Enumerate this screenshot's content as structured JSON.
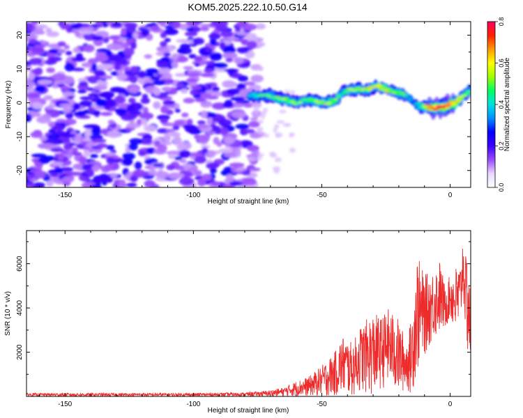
{
  "title": "KOM5.2025.222.10.50.G14",
  "chart_data": [
    {
      "type": "heatmap",
      "xlabel": "Height of straight line (km)",
      "ylabel": "Frequency (Hz)",
      "xlim": [
        -165,
        8
      ],
      "ylim": [
        -25,
        24
      ],
      "xticks": [
        -150,
        -100,
        -50,
        0
      ],
      "yticks": [
        -20,
        -10,
        0,
        10,
        20
      ],
      "colorbar": {
        "label": "Normalized spectral amplitude",
        "range": [
          0,
          0.8
        ],
        "ticks": [
          "0.0",
          "0.2",
          "0.4",
          "0.6",
          "0.8"
        ],
        "colors": [
          "#ffffff",
          "#e8d8ff",
          "#9a4cff",
          "#3c00ff",
          "#0000ff",
          "#0090ff",
          "#00e0e0",
          "#00ff60",
          "#a0ff00",
          "#ffff00",
          "#ff9900",
          "#ff2000",
          "#ff0060"
        ]
      },
      "noise_region_x": [
        -165,
        -76
      ],
      "signal_ridge": {
        "x": [
          -78,
          -70,
          -65,
          -60,
          -55,
          -50,
          -45,
          -42,
          -38,
          -32,
          -28,
          -25,
          -20,
          -17,
          -14,
          -12,
          -10,
          -6,
          -2,
          2,
          5,
          8
        ],
        "frequency": [
          2,
          2,
          1,
          0,
          1,
          0,
          0.5,
          3,
          4,
          4,
          5,
          4,
          3,
          2,
          0,
          -1,
          -1,
          -1.5,
          -1,
          0,
          2,
          4
        ],
        "peak_amplitude": [
          0.35,
          0.4,
          0.45,
          0.45,
          0.4,
          0.5,
          0.45,
          0.35,
          0.45,
          0.5,
          0.55,
          0.5,
          0.45,
          0.35,
          0.25,
          0.35,
          0.55,
          0.75,
          0.8,
          0.6,
          0.45,
          0.4
        ]
      }
    },
    {
      "type": "line",
      "xlabel": "Height of straight line (km)",
      "ylabel": "SNR (10 * v/v)",
      "xlim": [
        -165,
        8
      ],
      "ylim": [
        0,
        7500
      ],
      "xticks": [
        -150,
        -100,
        -50,
        0
      ],
      "yticks": [
        2000,
        4000,
        6000
      ],
      "color": "#ee2a2a",
      "envelope": {
        "x": [
          -165,
          -100,
          -80,
          -72,
          -65,
          -60,
          -55,
          -50,
          -45,
          -42,
          -38,
          -35,
          -30,
          -27,
          -24,
          -20,
          -17,
          -15,
          -13,
          -10,
          -7,
          -4,
          -2,
          0,
          2,
          4,
          5,
          6,
          7,
          8
        ],
        "min": [
          0,
          0,
          0,
          0,
          0,
          0,
          0,
          0,
          0,
          0,
          0,
          200,
          0,
          300,
          500,
          0,
          300,
          0,
          1000,
          1800,
          2500,
          2800,
          3000,
          3500,
          2600,
          3000,
          4500,
          2800,
          1400,
          1400
        ],
        "max": [
          150,
          150,
          180,
          250,
          400,
          700,
          900,
          1400,
          2000,
          2800,
          2400,
          3200,
          3800,
          3600,
          4000,
          3500,
          2500,
          3600,
          6500,
          5500,
          5700,
          6200,
          5000,
          5500,
          5900,
          6000,
          7400,
          6300,
          6900,
          4200
        ]
      }
    }
  ]
}
